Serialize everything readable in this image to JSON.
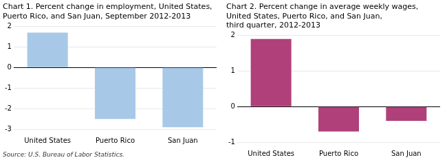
{
  "chart_data": [
    {
      "type": "bar",
      "title": "Chart 1. Percent change in employment, United States,\nPuerto Rico, and San Juan, September 2012-2013",
      "source": "Source: U.S. Bureau of Labor Statistics.",
      "categories": [
        "United States",
        "Puerto Rico",
        "San Juan"
      ],
      "values": [
        1.7,
        -2.5,
        -2.9
      ],
      "color": "#a8c8e8",
      "ylim": [
        -3,
        2
      ],
      "yticks": [
        -3,
        -2,
        -1,
        0,
        1,
        2
      ],
      "grid": true
    },
    {
      "type": "bar",
      "title": "Chart 2. Percent change in average weekly wages,\nUnited States, Puerto Rico, and San Juan,\nthird quarter, 2012-2013",
      "categories": [
        "United States",
        "Puerto Rico",
        "San Juan"
      ],
      "values": [
        1.9,
        -0.7,
        -0.4
      ],
      "color": "#b0407a",
      "ylim": [
        -1,
        2
      ],
      "yticks": [
        -1,
        0,
        1,
        2
      ],
      "grid": true
    }
  ]
}
